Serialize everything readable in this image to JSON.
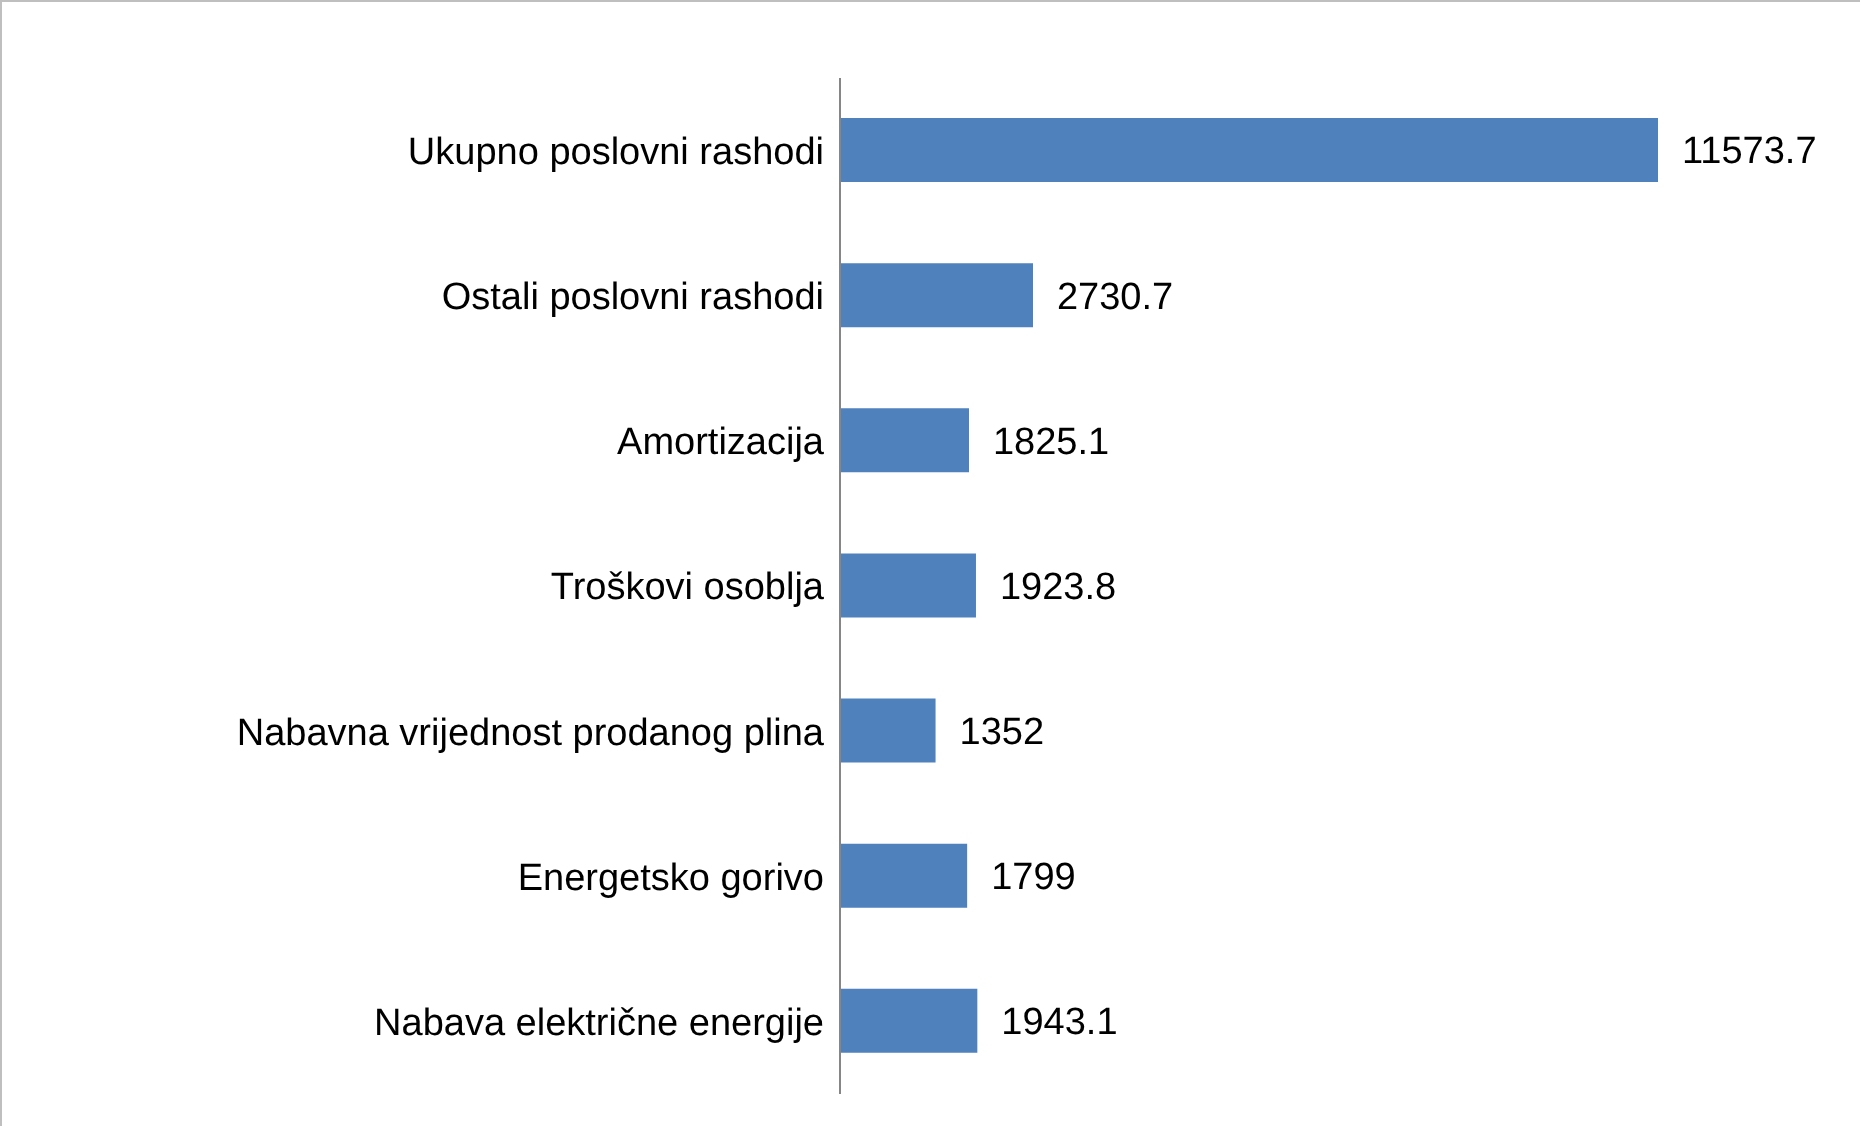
{
  "chart_data": {
    "type": "bar",
    "orientation": "horizontal",
    "categories": [
      "Ukupno poslovni rashodi",
      "Ostali poslovni rashodi",
      "Amortizacija",
      "Troškovi osoblja",
      "Nabavna vrijednost prodanog plina",
      "Energetsko gorivo",
      "Nabava električne energije"
    ],
    "values": [
      11573.7,
      2730.7,
      1825.1,
      1923.8,
      1352,
      1799,
      1943.1
    ],
    "color": "#4f81bd",
    "data_labels": true,
    "tick_labels": "y",
    "grid": false,
    "legend": false
  }
}
